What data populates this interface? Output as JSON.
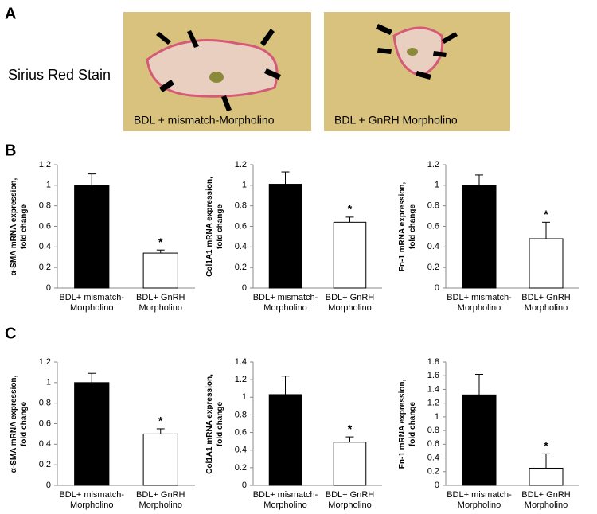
{
  "panel_labels": [
    "A",
    "B",
    "C"
  ],
  "stain_label": "Sirius Red Stain",
  "image_captions": [
    "BDL + mismatch-Morpholino",
    "BDL + GnRH Morpholino"
  ],
  "chart_data": [
    {
      "type": "bar",
      "y_label": "α-SMA mRNA expression,\nfold change",
      "categories": [
        "BDL+ mismatch-\nMorpholino",
        "BDL+ GnRH\nMorpholino"
      ],
      "values": [
        1.0,
        0.34
      ],
      "errors": [
        0.11,
        0.03
      ],
      "annotations": [
        null,
        "*"
      ],
      "colors": [
        "#000000",
        "#ffffff"
      ],
      "ylim": [
        0,
        1.2
      ],
      "yticks": [
        0,
        0.2,
        0.4,
        0.6,
        0.8,
        1,
        1.2
      ]
    },
    {
      "type": "bar",
      "y_label": "Col1A1 mRNA expression,\nfold change",
      "categories": [
        "BDL+ mismatch-\nMorpholino",
        "BDL+ GnRH\nMorpholino"
      ],
      "values": [
        1.01,
        0.64
      ],
      "errors": [
        0.12,
        0.05
      ],
      "annotations": [
        null,
        "*"
      ],
      "colors": [
        "#000000",
        "#ffffff"
      ],
      "ylim": [
        0,
        1.2
      ],
      "yticks": [
        0,
        0.2,
        0.4,
        0.6,
        0.8,
        1,
        1.2
      ]
    },
    {
      "type": "bar",
      "y_label": "Fn-1 mRNA expression,\nfold change",
      "categories": [
        "BDL+ mismatch-\nMorpholino",
        "BDL+ GnRH\nMorpholino"
      ],
      "values": [
        1.0,
        0.48
      ],
      "errors": [
        0.1,
        0.16
      ],
      "annotations": [
        null,
        "*"
      ],
      "colors": [
        "#000000",
        "#ffffff"
      ],
      "ylim": [
        0,
        1.2
      ],
      "yticks": [
        0,
        0.2,
        0.4,
        0.6,
        0.8,
        1,
        1.2
      ]
    },
    {
      "type": "bar",
      "y_label": "α-SMA  mRNA expression,\nfold change",
      "categories": [
        "BDL+ mismatch-\nMorpholino",
        "BDL+ GnRH\nMorpholino"
      ],
      "values": [
        1.0,
        0.5
      ],
      "errors": [
        0.09,
        0.05
      ],
      "annotations": [
        null,
        "*"
      ],
      "colors": [
        "#000000",
        "#ffffff"
      ],
      "ylim": [
        0,
        1.2
      ],
      "yticks": [
        0,
        0.2,
        0.4,
        0.6,
        0.8,
        1,
        1.2
      ]
    },
    {
      "type": "bar",
      "y_label": "Col1A1 mRNA expression,\nfold change",
      "categories": [
        "BDL+ mismatch-\nMorpholino",
        "BDL+ GnRH\nMorpholino"
      ],
      "values": [
        1.03,
        0.49
      ],
      "errors": [
        0.21,
        0.06
      ],
      "annotations": [
        null,
        "*"
      ],
      "colors": [
        "#000000",
        "#ffffff"
      ],
      "ylim": [
        0,
        1.4
      ],
      "yticks": [
        0,
        0.2,
        0.4,
        0.6,
        0.8,
        1,
        1.2,
        1.4
      ]
    },
    {
      "type": "bar",
      "y_label": "Fn-1 mRNA expression,\nfold change",
      "categories": [
        "BDL+ mismatch-\nMorpholino",
        "BDL+ GnRH\nMorpholino"
      ],
      "values": [
        1.32,
        0.25
      ],
      "errors": [
        0.3,
        0.21
      ],
      "annotations": [
        null,
        "*"
      ],
      "colors": [
        "#000000",
        "#ffffff"
      ],
      "ylim": [
        0,
        1.8
      ],
      "yticks": [
        0,
        0.2,
        0.4,
        0.6,
        0.8,
        1,
        1.2,
        1.4,
        1.6,
        1.8
      ]
    }
  ]
}
